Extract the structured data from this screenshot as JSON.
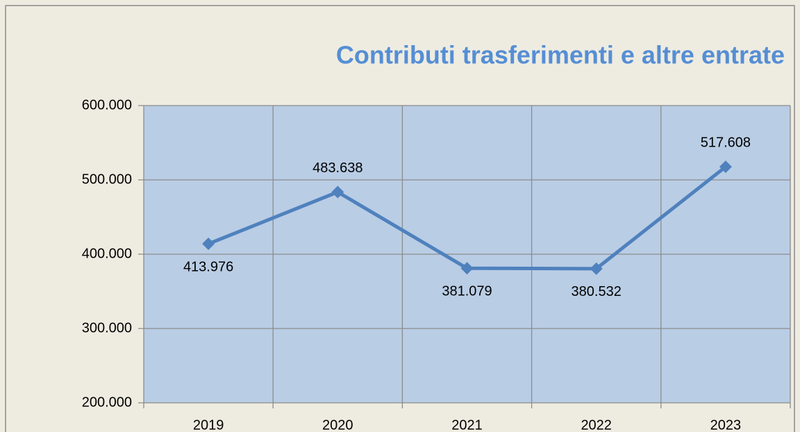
{
  "chart_data": {
    "type": "line",
    "title": "Contributi trasferimenti e altre entrate",
    "categories": [
      "2019",
      "2020",
      "2021",
      "2022",
      "2023"
    ],
    "series": [
      {
        "name": "Contributi trasferimenti e altre entrate",
        "color": "#4f81bd",
        "values": [
          413976,
          483638,
          381079,
          380532,
          517608
        ],
        "value_labels": [
          "413.976",
          "483.638",
          "381.079",
          "380.532",
          "517.608"
        ]
      }
    ],
    "ylim": [
      200000,
      600000
    ],
    "yticks": [
      {
        "value": 200000,
        "label": "200.000"
      },
      {
        "value": 300000,
        "label": "300.000"
      },
      {
        "value": 400000,
        "label": "400.000"
      },
      {
        "value": 500000,
        "label": "500.000"
      },
      {
        "value": 600000,
        "label": "600.000"
      }
    ],
    "grid": true,
    "plot_color": "#b9cde5"
  }
}
